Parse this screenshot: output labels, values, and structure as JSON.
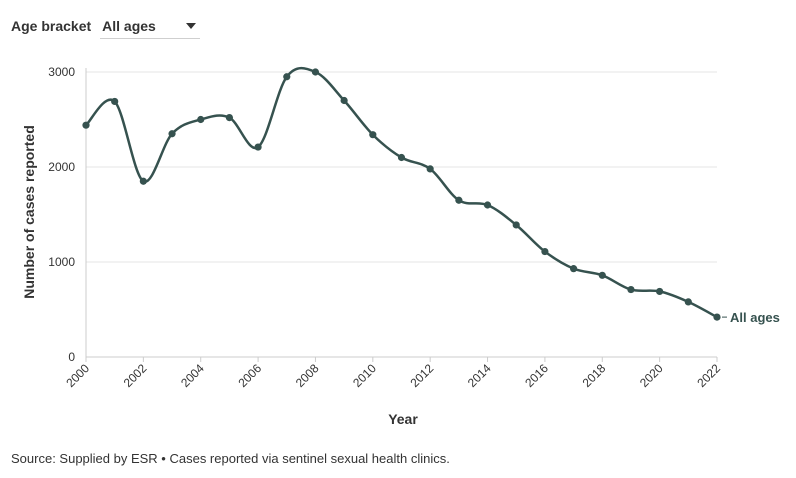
{
  "controls": {
    "age_label": "Age bracket",
    "age_selected": "All ages"
  },
  "footer": {
    "source": "Source: Supplied by ESR • Cases reported via sentinel sexual health clinics."
  },
  "colors": {
    "line": "#36524f",
    "grid": "#e6e6e6",
    "axis": "#cccccc",
    "text": "#333333"
  },
  "chart_data": {
    "type": "line",
    "xlabel": "Year",
    "ylabel": "Number of cases reported",
    "xlim": [
      2000,
      2022
    ],
    "ylim": [
      0,
      3000
    ],
    "x_ticks": [
      2000,
      2002,
      2004,
      2006,
      2008,
      2010,
      2012,
      2014,
      2016,
      2018,
      2020,
      2022
    ],
    "y_ticks": [
      0,
      1000,
      2000,
      3000
    ],
    "grid": true,
    "series": [
      {
        "name": "All ages",
        "x": [
          2000,
          2001,
          2002,
          2003,
          2004,
          2005,
          2006,
          2007,
          2008,
          2009,
          2010,
          2011,
          2012,
          2013,
          2014,
          2015,
          2016,
          2017,
          2018,
          2019,
          2020,
          2021,
          2022
        ],
        "values": [
          2440,
          2690,
          1850,
          2350,
          2500,
          2520,
          2210,
          2950,
          3000,
          2700,
          2340,
          2100,
          1980,
          1650,
          1600,
          1390,
          1110,
          930,
          860,
          710,
          690,
          580,
          420
        ]
      }
    ]
  }
}
